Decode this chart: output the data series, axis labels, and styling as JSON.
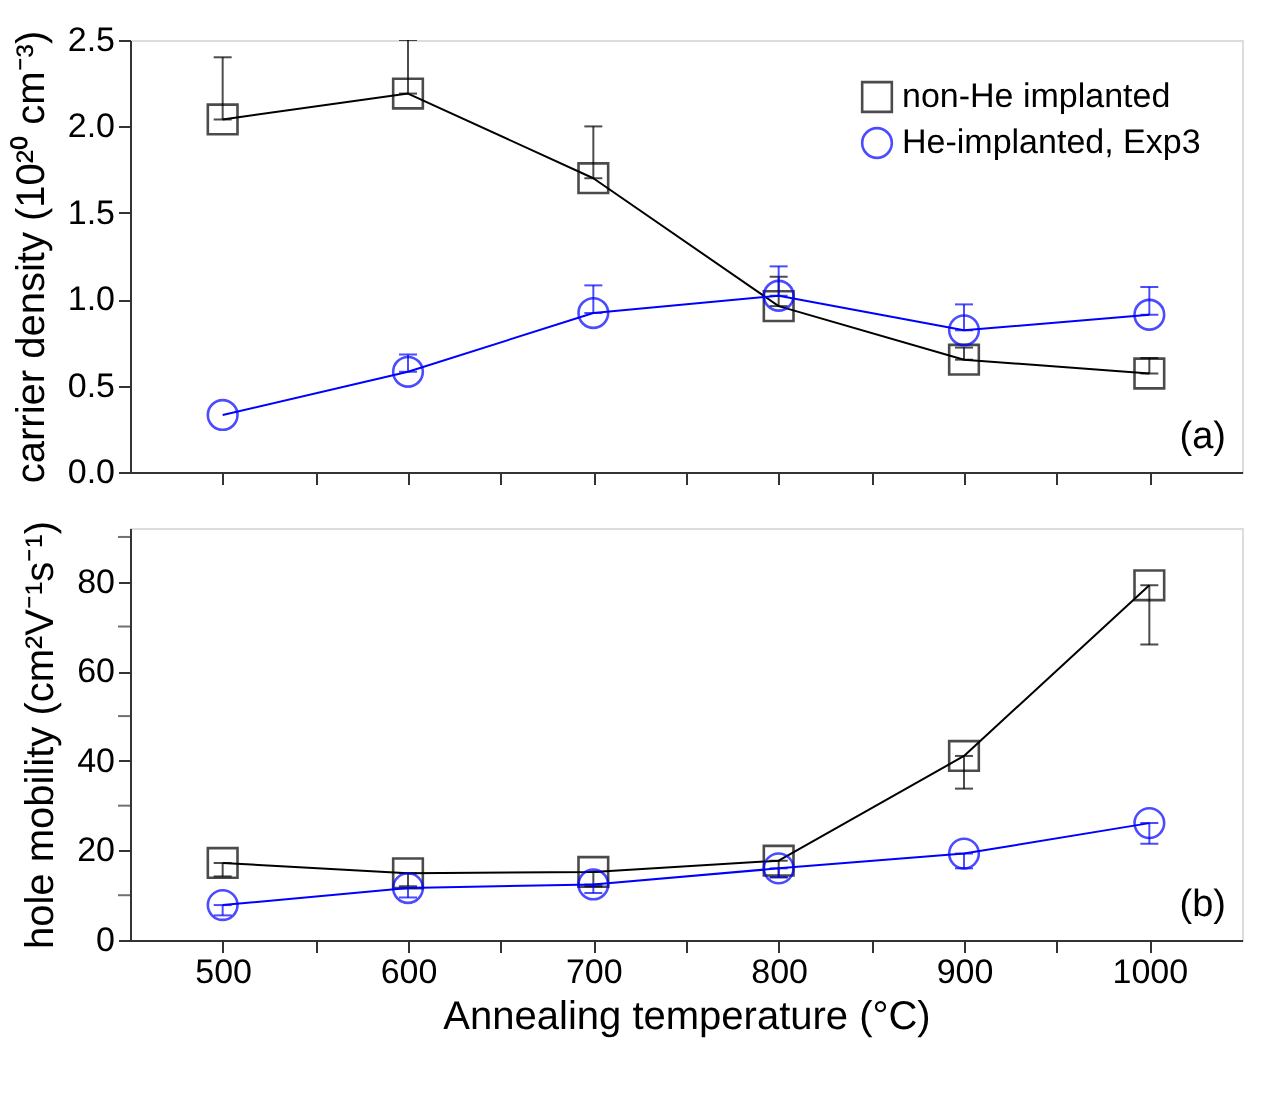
{
  "chart_data": [
    {
      "type": "line",
      "ylabel": "carrier density (10²⁰ cm⁻³)",
      "x": [
        500,
        600,
        700,
        800,
        900,
        1000
      ],
      "xlim": [
        450,
        1050
      ],
      "xticks": [
        500,
        {
          "value": 550,
          "label": null
        },
        600,
        {
          "value": 650,
          "label": null
        },
        700,
        {
          "value": 750,
          "label": null
        },
        800,
        {
          "value": 850,
          "label": null
        },
        900,
        {
          "value": 950,
          "label": null
        },
        1000
      ],
      "ylim": [
        0,
        2.5
      ],
      "yticks": [
        {
          "value": 0,
          "label": "0.0"
        },
        0.5,
        {
          "value": 1,
          "label": "1.0"
        },
        1.5,
        {
          "value": 2,
          "label": "2.0"
        },
        2.5
      ],
      "tick_labels": "y",
      "grid": false,
      "legend": "top right",
      "annotations": [
        "(a)"
      ],
      "series": [
        {
          "name": "non-He implanted",
          "color": "#000000",
          "marker": "square",
          "values": [
            2.04,
            2.19,
            1.7,
            0.96,
            0.65,
            0.57
          ],
          "errors": [
            [
              2.04,
              2.4
            ],
            [
              2.19,
              2.5
            ],
            [
              1.7,
              2.0
            ],
            [
              0.96,
              1.13
            ],
            [
              0.65,
              0.72
            ],
            [
              0.57,
              0.66
            ]
          ]
        },
        {
          "name": "He-implanted, Exp3",
          "color": "#0000ff",
          "marker": "circle",
          "values": [
            0.33,
            0.58,
            0.92,
            1.02,
            0.82,
            0.91
          ],
          "errors": [
            null,
            [
              0.58,
              0.68
            ],
            [
              0.92,
              1.08
            ],
            [
              1.02,
              1.19
            ],
            [
              0.82,
              0.97
            ],
            [
              0.91,
              1.07
            ]
          ]
        }
      ]
    },
    {
      "type": "line",
      "ylabel": "hole mobility (cm²V⁻¹s⁻¹)",
      "xlabel": "Annealing temperature (°C)",
      "x": [
        500,
        600,
        700,
        800,
        900,
        1000
      ],
      "xlim": [
        450,
        1050
      ],
      "xticks": [
        500,
        {
          "value": 550,
          "label": null
        },
        600,
        {
          "value": 650,
          "label": null
        },
        700,
        {
          "value": 750,
          "label": null
        },
        800,
        {
          "value": 850,
          "label": null
        },
        900,
        {
          "value": 950,
          "label": null
        },
        1000
      ],
      "ylim": [
        0,
        92
      ],
      "yticks": [
        0,
        {
          "value": 10,
          "label": null
        },
        20,
        {
          "value": 30,
          "label": null
        },
        40,
        {
          "value": 50,
          "label": null
        },
        60,
        {
          "value": 70,
          "label": null
        },
        80,
        {
          "value": 90,
          "label": null
        }
      ],
      "grid": false,
      "annotations": [
        "(b)"
      ],
      "series": [
        {
          "color": "#000000",
          "marker": "square",
          "values": [
            17.2,
            14.9,
            15.2,
            17.7,
            41.1,
            79.2
          ],
          "errors": [
            [
              14.2,
              17.2
            ],
            [
              12.0,
              14.9
            ],
            [
              12.0,
              15.2
            ],
            [
              14.0,
              17.7
            ],
            [
              33.8,
              41.1
            ],
            [
              66.0,
              79.2
            ]
          ]
        },
        {
          "color": "#0000ff",
          "marker": "circle",
          "values": [
            7.8,
            11.6,
            12.4,
            16.0,
            19.3,
            26.1
          ],
          "errors": [
            [
              5.5,
              7.8
            ],
            [
              9.5,
              11.6
            ],
            [
              10.5,
              12.4
            ],
            [
              14.0,
              16.0
            ],
            [
              16.0,
              19.3
            ],
            [
              21.5,
              26.1
            ]
          ]
        }
      ]
    }
  ]
}
